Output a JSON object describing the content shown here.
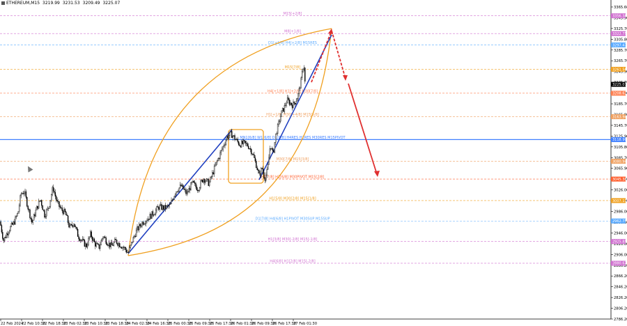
{
  "header": {
    "symbol": "ETHEREUM,M15",
    "open": "3219.99",
    "high": "3231.53",
    "low": "3209.49",
    "close": "3225.07"
  },
  "chart_data": {
    "type": "candlestick",
    "ylim": [
      2786.0,
      3384.0
    ],
    "y_ticks": [
      "3365.60",
      "3345.90",
      "3325.70",
      "3305.80",
      "3285.70",
      "3265.70",
      "3245.90",
      "3225.70",
      "3205.80",
      "3185.70",
      "3165.80",
      "3145.70",
      "3125.90",
      "3105.80",
      "3085.70",
      "3065.90",
      "3045.80",
      "3026.00",
      "3006.00",
      "2986.00",
      "2966.00",
      "2946.00",
      "2926.00",
      "2906.00",
      "2886.20",
      "2866.20",
      "2846.20",
      "2826.20",
      "2806.20",
      "2786.20"
    ],
    "x_ticks": [
      "22 Feb 2024",
      "22 Feb 10:30",
      "22 Feb 18:30",
      "23 Feb 02:30",
      "23 Feb 10:30",
      "23 Feb 18:30",
      "24 Feb 02:30",
      "24 Feb 16:30",
      "25 Feb 00:30",
      "25 Feb 09:30",
      "25 Feb 17:30",
      "26 Feb 01:30",
      "26 Feb 09:30",
      "26 Feb 17:30",
      "27 Feb 01:30"
    ],
    "price_path": [
      [
        0,
        2962
      ],
      [
        5,
        2926
      ],
      [
        12,
        2945
      ],
      [
        20,
        2960
      ],
      [
        26,
        2980
      ],
      [
        30,
        3015
      ],
      [
        35,
        3020
      ],
      [
        40,
        2990
      ],
      [
        46,
        2960
      ],
      [
        52,
        2985
      ],
      [
        58,
        3005
      ],
      [
        64,
        2975
      ],
      [
        70,
        2990
      ],
      [
        76,
        3028
      ],
      [
        82,
        2998
      ],
      [
        88,
        2985
      ],
      [
        94,
        2978
      ],
      [
        100,
        2950
      ],
      [
        106,
        2960
      ],
      [
        112,
        2935
      ],
      [
        118,
        2925
      ],
      [
        124,
        2915
      ],
      [
        130,
        2938
      ],
      [
        136,
        2920
      ],
      [
        142,
        2912
      ],
      [
        148,
        2935
      ],
      [
        154,
        2922
      ],
      [
        160,
        2915
      ],
      [
        166,
        2925
      ],
      [
        172,
        2918
      ],
      [
        178,
        2912
      ],
      [
        184,
        2902
      ],
      [
        190,
        2925
      ],
      [
        196,
        2945
      ],
      [
        204,
        2960
      ],
      [
        212,
        2968
      ],
      [
        220,
        2978
      ],
      [
        228,
        2990
      ],
      [
        236,
        2988
      ],
      [
        244,
        2992
      ],
      [
        252,
        3020
      ],
      [
        260,
        3030
      ],
      [
        268,
        3015
      ],
      [
        276,
        3036
      ],
      [
        284,
        3025
      ],
      [
        292,
        3045
      ],
      [
        300,
        3035
      ],
      [
        308,
        3065
      ],
      [
        314,
        3085
      ],
      [
        320,
        3105
      ],
      [
        326,
        3125
      ],
      [
        332,
        3130
      ],
      [
        338,
        3120
      ],
      [
        344,
        3110
      ],
      [
        350,
        3112
      ],
      [
        356,
        3108
      ],
      [
        362,
        3095
      ],
      [
        368,
        3070
      ],
      [
        372,
        3050
      ],
      [
        376,
        3065
      ],
      [
        380,
        3045
      ],
      [
        384,
        3060
      ],
      [
        388,
        3110
      ],
      [
        392,
        3090
      ],
      [
        396,
        3130
      ],
      [
        400,
        3150
      ],
      [
        404,
        3170
      ],
      [
        408,
        3180
      ],
      [
        412,
        3195
      ],
      [
        416,
        3190
      ],
      [
        420,
        3185
      ],
      [
        424,
        3192
      ],
      [
        428,
        3205
      ],
      [
        432,
        3230
      ],
      [
        436,
        3268
      ],
      [
        438,
        3225
      ]
    ],
    "levels": [
      {
        "label": "M15[+2/8]",
        "price": 3356.4,
        "color": "#d070d0",
        "tag": "3356.38"
      },
      {
        "label": "M8[+1/8]",
        "price": 3322.3,
        "color": "#d070d0",
        "tag": "3322.75"
      },
      {
        "label": "D1[+1/8] H4[+2/8] M15RES",
        "price": 3300.6,
        "color": "#5aaaff",
        "tag": "3297.47"
      },
      {
        "label": "M15[7/8]",
        "price": 3253.9,
        "color": "#f0a020",
        "tag": "3261.56"
      },
      {
        "label": "H4[+1/8] H1[+2/8] M30[7/8]",
        "price": 3208.0,
        "color": "#ff7f50",
        "tag": "3208.62"
      },
      {
        "label": "H1[+1/8] M30[+4/8] M15[5/8]",
        "price": 3163.0,
        "color": "#f0a060",
        "tag": "3163.94"
      },
      {
        "label": "MN1[6/8] W1[6/8] D1[8/8] H4RES H1RES M30RES M15PIVOT",
        "price": 3119.2,
        "color": "#4080ff",
        "tag": "3118.90"
      },
      {
        "label": "M30[7/8] M15[3/8]",
        "price": 3077.7,
        "color": "#f0a060",
        "tag": "3080.94"
      },
      {
        "label": "H4[7/8] H1[6/8] M30PIVOT M15[2/8]",
        "price": 3043.5,
        "color": "#ff6030",
        "tag": "3045.38"
      },
      {
        "label": "H1[5/8] M30[2/8] M15[1/8]",
        "price": 3002.3,
        "color": "#f0a020",
        "tag": "3007.11"
      },
      {
        "label": "D1[7/8] H4[6/8] H1PIVOT M30SUP M15SUP",
        "price": 2963.2,
        "color": "#5aaaff",
        "tag": "2962.75"
      },
      {
        "label": "H1[3/8] M30[-2/8] M15[-1/8]",
        "price": 2923.9,
        "color": "#d070d0",
        "tag": "2925.85"
      },
      {
        "label": "H4[6/8] H1[2/8] M15[-2/8]",
        "price": 2882.2,
        "color": "#d070d0",
        "tag": "2880.62"
      }
    ],
    "current_price_tag": "3225.07"
  }
}
